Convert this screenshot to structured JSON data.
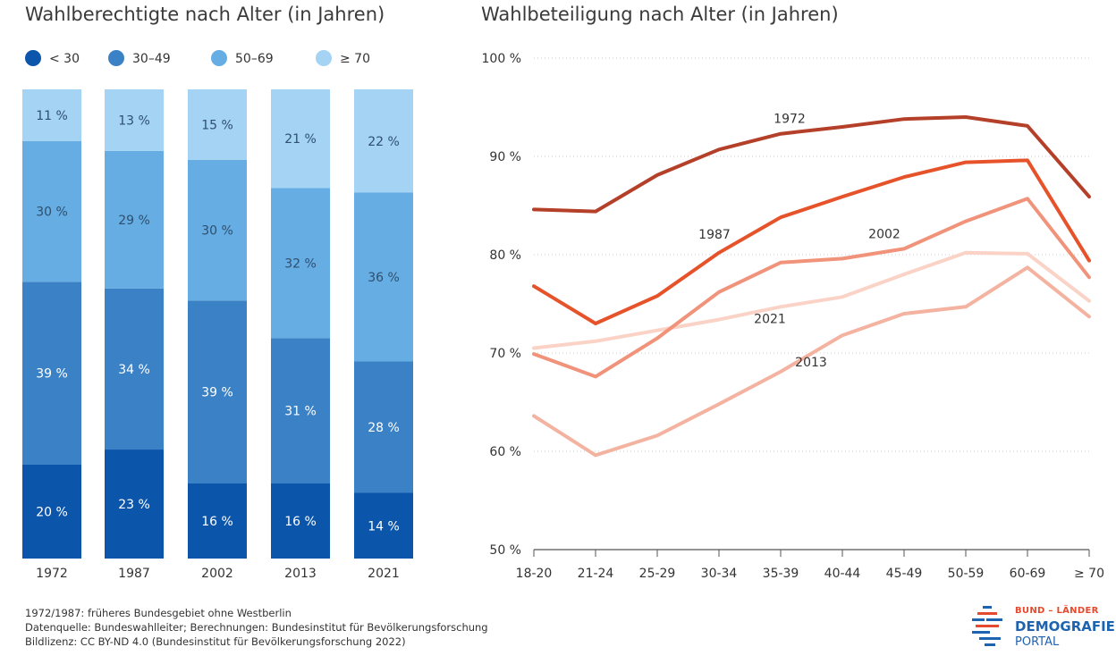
{
  "chart_data": [
    {
      "type": "bar",
      "stacked": true,
      "title": "Wahlberechtigte nach Alter (in Jahren)",
      "categories": [
        "1972",
        "1987",
        "2002",
        "2013",
        "2021"
      ],
      "legend_position": "top-left",
      "series": [
        {
          "name": "< 30",
          "color": "#0b55ab",
          "values": [
            20,
            23,
            16,
            16,
            14
          ],
          "labels": [
            "20 %",
            "23 %",
            "16 %",
            "16 %",
            "14 %"
          ]
        },
        {
          "name": "30–49",
          "color": "#3b81c6",
          "values": [
            39,
            34,
            39,
            31,
            28
          ],
          "labels": [
            "39 %",
            "34 %",
            "39 %",
            "31 %",
            "28 %"
          ]
        },
        {
          "name": "50–69",
          "color": "#65ade3",
          "values": [
            30,
            29,
            30,
            32,
            36
          ],
          "labels": [
            "30 %",
            "29 %",
            "30 %",
            "32 %",
            "36 %"
          ]
        },
        {
          "name": "≥ 70",
          "color": "#a4d3f3",
          "values": [
            11,
            13,
            15,
            21,
            22
          ],
          "labels": [
            "11 %",
            "13 %",
            "15 %",
            "21 %",
            "22 %"
          ]
        }
      ]
    },
    {
      "type": "line",
      "title": "Wahlbeteiligung nach Alter (in Jahren)",
      "x": [
        "18-20",
        "21-24",
        "25-29",
        "30-34",
        "35-39",
        "40-44",
        "45-49",
        "50-59",
        "60-69",
        "≥ 70"
      ],
      "ylim": [
        50,
        100
      ],
      "yticks": [
        "50 %",
        "60 %",
        "70 %",
        "80 %",
        "90 %",
        "100 %"
      ],
      "grid": true,
      "series": [
        {
          "name": "1972",
          "color": "#b5402a",
          "values": [
            84.6,
            84.4,
            88.1,
            90.7,
            92.3,
            93.0,
            93.8,
            94.0,
            93.1,
            85.9
          ]
        },
        {
          "name": "1987",
          "color": "#e6532a",
          "values": [
            76.8,
            73.0,
            75.8,
            80.2,
            83.8,
            85.9,
            87.9,
            89.4,
            89.6,
            79.4
          ]
        },
        {
          "name": "2002",
          "color": "#f0937a",
          "values": [
            69.9,
            67.6,
            71.5,
            76.2,
            79.2,
            79.6,
            80.6,
            83.4,
            85.7,
            77.7
          ]
        },
        {
          "name": "2013",
          "color": "#f4b3a0",
          "values": [
            63.6,
            59.6,
            61.6,
            64.8,
            68.1,
            71.8,
            74.0,
            74.7,
            78.7,
            73.7
          ]
        },
        {
          "name": "2021",
          "color": "#fad3c6",
          "values": [
            70.5,
            71.2,
            72.3,
            73.4,
            74.7,
            75.7,
            78.0,
            80.2,
            80.1,
            75.3
          ]
        }
      ]
    }
  ],
  "footer": {
    "note": "1972/1987: früheres Bundesgebiet ohne Westberlin",
    "source": "Datenquelle: Bundeswahlleiter; Berechnungen: Bundesinstitut für Bevölkerungsforschung",
    "license": "Bildlizenz: CC BY-ND 4.0 (Bundesinstitut für Bevölkerungsforschung 2022)"
  },
  "logo": {
    "line1": "BUND – LÄNDER",
    "line2": "DEMOGRAFIE",
    "line3": "PORTAL",
    "color_red": "#e64a2e",
    "color_blue": "#1d63b0"
  }
}
